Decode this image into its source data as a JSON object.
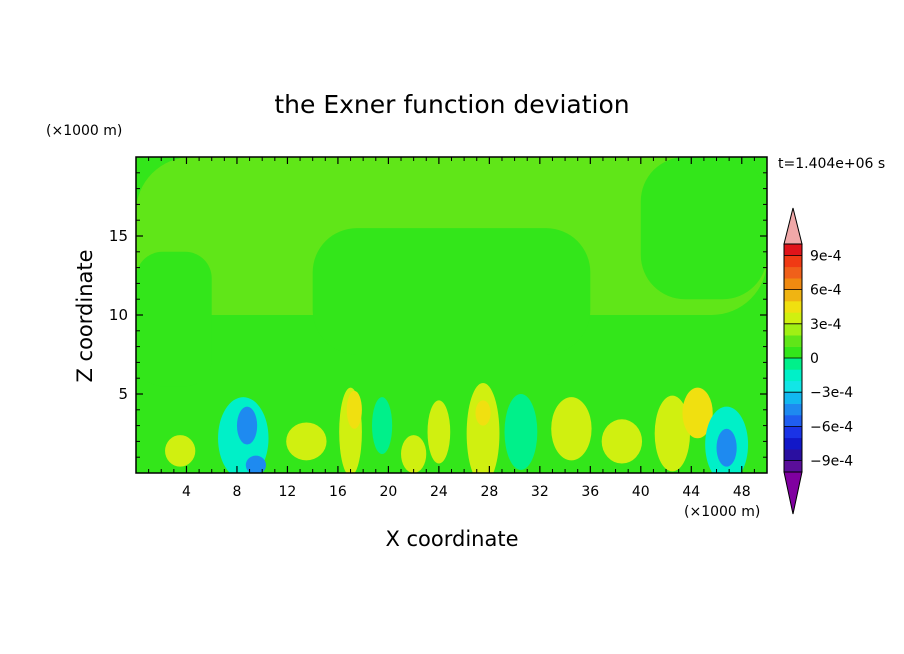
{
  "chart_data": {
    "type": "heatmap",
    "title": "the Exner function deviation",
    "xlabel": "X coordinate",
    "ylabel": "Z coordinate",
    "x_unit": "(×1000 m)",
    "y_unit": "(×1000 m)",
    "time_label": "t=1.404e+06 s",
    "xlim": [
      0,
      50
    ],
    "ylim": [
      0,
      20
    ],
    "x_ticks": [
      4,
      8,
      12,
      16,
      20,
      24,
      28,
      32,
      36,
      40,
      44,
      48
    ],
    "x_tick_labels": [
      "4",
      "8",
      "12",
      "16",
      "20",
      "24",
      "28",
      "32",
      "36",
      "40",
      "44",
      "48"
    ],
    "y_ticks": [
      5,
      10,
      15
    ],
    "y_tick_labels": [
      "5",
      "10",
      "15"
    ],
    "colorbar": {
      "levels": [
        -0.0009,
        -0.0008,
        -0.0007,
        -0.0006,
        -0.0005,
        -0.0004,
        -0.0003,
        -0.0002,
        -0.0001,
        0,
        0.0001,
        0.0002,
        0.0003,
        0.0004,
        0.0005,
        0.0006,
        0.0007,
        0.0008,
        0.0009
      ],
      "colors": [
        "#5a0e9a",
        "#2a0fa0",
        "#1218c8",
        "#1a33e6",
        "#1f5ef0",
        "#1e8af0",
        "#12b8f0",
        "#12e6e6",
        "#00f0c8",
        "#00f08a",
        "#33e61a",
        "#60e618",
        "#a0f014",
        "#d0f010",
        "#f0e010",
        "#f0b412",
        "#f08a10",
        "#f0601a",
        "#f03a14",
        "#e0141a"
      ],
      "under_color": "#8000a0",
      "over_color": "#f0a8a8",
      "tick_values": [
        0.0009,
        0.0006,
        0.0003,
        0,
        -0.0003,
        -0.0006,
        -0.0009
      ],
      "tick_labels": [
        "9e-4",
        "6e-4",
        "3e-4",
        "0",
        "−3e-4",
        "−6e-4",
        "−9e-4"
      ]
    },
    "field": {
      "background_value": 5e-05,
      "upper_bands": [
        {
          "x": [
            0,
            50
          ],
          "z": [
            10,
            20
          ],
          "value": 0.00015
        },
        {
          "x": [
            0,
            6
          ],
          "z": [
            5.5,
            14
          ],
          "value": 5e-05
        },
        {
          "x": [
            14,
            36
          ],
          "z": [
            7.5,
            15.5
          ],
          "value": 5e-05
        },
        {
          "x": [
            40,
            50
          ],
          "z": [
            11,
            20
          ],
          "value": 5e-05
        }
      ],
      "features": [
        {
          "x": 3.5,
          "z": 1.4,
          "rx": 1.2,
          "rz": 1.0,
          "value": 0.00034
        },
        {
          "x": 8.5,
          "z": 2.2,
          "rx": 2.0,
          "rz": 2.6,
          "value": -0.0002
        },
        {
          "x": 8.8,
          "z": 3.0,
          "rx": 0.8,
          "rz": 1.2,
          "value": -0.0005
        },
        {
          "x": 9.5,
          "z": 0.5,
          "rx": 0.8,
          "rz": 0.6,
          "value": -0.0005
        },
        {
          "x": 13.5,
          "z": 2.0,
          "rx": 1.6,
          "rz": 1.2,
          "value": 0.00034
        },
        {
          "x": 17.0,
          "z": 2.6,
          "rx": 0.9,
          "rz": 2.8,
          "value": 0.0003
        },
        {
          "x": 17.3,
          "z": 4.0,
          "rx": 0.6,
          "rz": 1.2,
          "value": 0.00044
        },
        {
          "x": 19.5,
          "z": 3.0,
          "rx": 0.8,
          "rz": 1.8,
          "value": -0.0001
        },
        {
          "x": 22.0,
          "z": 1.2,
          "rx": 1.0,
          "rz": 1.2,
          "value": 0.00034
        },
        {
          "x": 24.0,
          "z": 2.6,
          "rx": 0.9,
          "rz": 2.0,
          "value": 0.0003
        },
        {
          "x": 27.5,
          "z": 2.5,
          "rx": 1.3,
          "rz": 3.2,
          "value": 0.0003
        },
        {
          "x": 27.5,
          "z": 3.8,
          "rx": 0.6,
          "rz": 0.8,
          "value": 0.00044
        },
        {
          "x": 30.5,
          "z": 2.6,
          "rx": 1.3,
          "rz": 2.4,
          "value": -0.0001
        },
        {
          "x": 34.5,
          "z": 2.8,
          "rx": 1.6,
          "rz": 2.0,
          "value": 0.0003
        },
        {
          "x": 38.5,
          "z": 2.0,
          "rx": 1.6,
          "rz": 1.4,
          "value": 0.00034
        },
        {
          "x": 42.5,
          "z": 2.5,
          "rx": 1.4,
          "rz": 2.4,
          "value": 0.0003
        },
        {
          "x": 44.5,
          "z": 3.8,
          "rx": 1.2,
          "rz": 1.6,
          "value": 0.00044
        },
        {
          "x": 46.8,
          "z": 1.8,
          "rx": 1.7,
          "rz": 2.4,
          "value": -0.0002
        },
        {
          "x": 46.8,
          "z": 1.6,
          "rx": 0.8,
          "rz": 1.2,
          "value": -0.0005
        }
      ]
    }
  }
}
